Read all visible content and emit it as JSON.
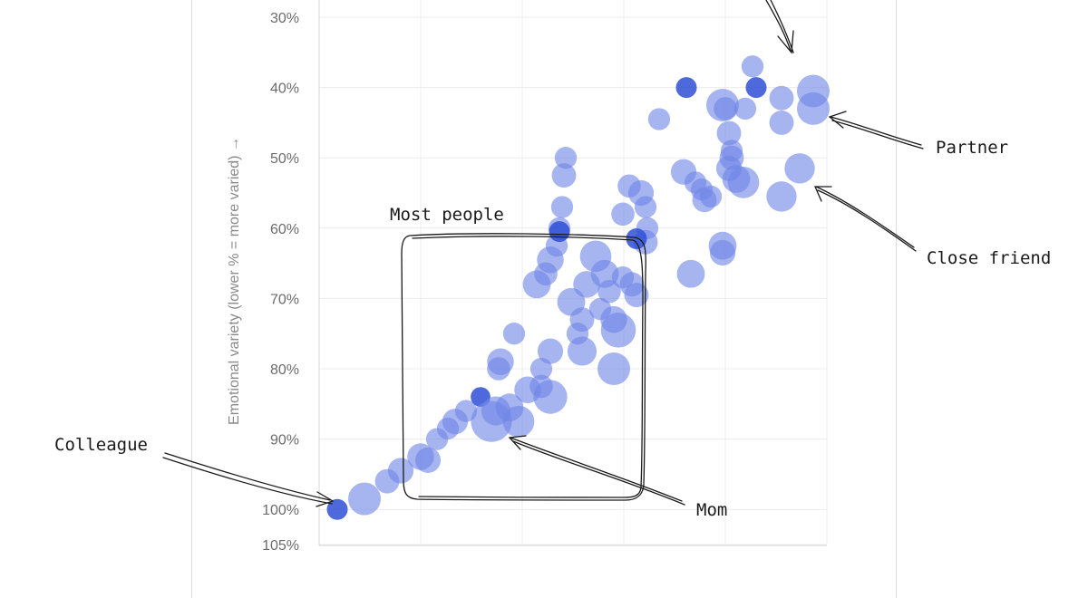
{
  "chart_data": {
    "type": "scatter",
    "ylabel": "Emotional variety (lower % = more varied) →",
    "y_ticks": [
      "30%",
      "40%",
      "50%",
      "60%",
      "70%",
      "80%",
      "90%",
      "100%",
      "105%"
    ],
    "y_tick_values": [
      30,
      40,
      50,
      60,
      70,
      80,
      90,
      100,
      105
    ],
    "ylim": [
      30,
      105
    ],
    "y_inverted": true,
    "x_ticks_visible": false,
    "grid": true,
    "colors": {
      "point_light": "#6f86e6",
      "point_dark": "#2f4fd6",
      "annotation": "#1a1a1a"
    },
    "points": [
      {
        "x": 0.2,
        "y": 100,
        "r": 1
      },
      {
        "x": 0.5,
        "y": 98.5,
        "r": 2
      },
      {
        "x": 0.75,
        "y": 96,
        "r": 1.3
      },
      {
        "x": 0.9,
        "y": 94.5,
        "r": 1.4
      },
      {
        "x": 1.12,
        "y": 92.5,
        "r": 1.5
      },
      {
        "x": 1.2,
        "y": 93,
        "r": 1.4
      },
      {
        "x": 1.3,
        "y": 90,
        "r": 1.1
      },
      {
        "x": 1.42,
        "y": 88.5,
        "r": 1.1
      },
      {
        "x": 1.5,
        "y": 87.5,
        "r": 1.4
      },
      {
        "x": 1.62,
        "y": 86,
        "r": 1.1
      },
      {
        "x": 1.78,
        "y": 84,
        "r": 0.9
      },
      {
        "x": 1.9,
        "y": 87.5,
        "r": 2.7
      },
      {
        "x": 1.95,
        "y": 86,
        "r": 1.7
      },
      {
        "x": 2.1,
        "y": 85.5,
        "r": 1.6
      },
      {
        "x": 2.2,
        "y": 87.5,
        "r": 1.9
      },
      {
        "x": 2.3,
        "y": 83,
        "r": 1.5
      },
      {
        "x": 2.45,
        "y": 82.5,
        "r": 1.2
      },
      {
        "x": 2.55,
        "y": 84,
        "r": 2.1
      },
      {
        "x": 2.45,
        "y": 80,
        "r": 1.1
      },
      {
        "x": 2.55,
        "y": 77.5,
        "r": 1.4
      },
      {
        "x": 1.98,
        "y": 80,
        "r": 1.2
      },
      {
        "x": 2.0,
        "y": 79,
        "r": 1.5
      },
      {
        "x": 2.15,
        "y": 75,
        "r": 1.1
      },
      {
        "x": 2.4,
        "y": 68,
        "r": 1.6
      },
      {
        "x": 2.5,
        "y": 66.5,
        "r": 1.2
      },
      {
        "x": 2.55,
        "y": 64.5,
        "r": 1.5
      },
      {
        "x": 2.62,
        "y": 62.5,
        "r": 1.1
      },
      {
        "x": 2.65,
        "y": 60,
        "r": 1.1
      },
      {
        "x": 2.65,
        "y": 60.5,
        "r": 1.0
      },
      {
        "x": 2.68,
        "y": 57,
        "r": 1.1
      },
      {
        "x": 2.7,
        "y": 52.5,
        "r": 1.3
      },
      {
        "x": 2.72,
        "y": 50,
        "r": 1.1
      },
      {
        "x": 2.78,
        "y": 70.5,
        "r": 1.6
      },
      {
        "x": 2.85,
        "y": 75,
        "r": 1.1
      },
      {
        "x": 2.9,
        "y": 73,
        "r": 1.3
      },
      {
        "x": 2.95,
        "y": 68,
        "r": 1.5
      },
      {
        "x": 2.9,
        "y": 77.5,
        "r": 1.7
      },
      {
        "x": 3.05,
        "y": 64,
        "r": 1.9
      },
      {
        "x": 3.1,
        "y": 71.5,
        "r": 1.1
      },
      {
        "x": 3.15,
        "y": 66.5,
        "r": 1.6
      },
      {
        "x": 3.2,
        "y": 69,
        "r": 1.2
      },
      {
        "x": 3.25,
        "y": 73,
        "r": 1.5
      },
      {
        "x": 3.3,
        "y": 74.5,
        "r": 2.2
      },
      {
        "x": 3.35,
        "y": 67,
        "r": 1.1
      },
      {
        "x": 3.45,
        "y": 68,
        "r": 1.3
      },
      {
        "x": 3.5,
        "y": 69.5,
        "r": 1.3
      },
      {
        "x": 3.25,
        "y": 80,
        "r": 2.0
      },
      {
        "x": 3.35,
        "y": 58,
        "r": 1.2
      },
      {
        "x": 3.42,
        "y": 54,
        "r": 1.2
      },
      {
        "x": 3.55,
        "y": 55,
        "r": 1.4
      },
      {
        "x": 3.6,
        "y": 57,
        "r": 1.1
      },
      {
        "x": 3.62,
        "y": 60,
        "r": 1.1
      },
      {
        "x": 3.6,
        "y": 62,
        "r": 1.3
      },
      {
        "x": 3.5,
        "y": 61.5,
        "r": 1.0
      },
      {
        "x": 3.75,
        "y": 44.5,
        "r": 1.1
      },
      {
        "x": 4.05,
        "y": 40,
        "r": 1.0
      },
      {
        "x": 4.02,
        "y": 52,
        "r": 1.4
      },
      {
        "x": 4.1,
        "y": 66.5,
        "r": 1.6
      },
      {
        "x": 4.15,
        "y": 53.5,
        "r": 1.1
      },
      {
        "x": 4.22,
        "y": 54.5,
        "r": 1.1
      },
      {
        "x": 4.25,
        "y": 56,
        "r": 1.3
      },
      {
        "x": 4.32,
        "y": 55.5,
        "r": 1.1
      },
      {
        "x": 4.45,
        "y": 62.5,
        "r": 1.6
      },
      {
        "x": 4.45,
        "y": 63.5,
        "r": 1.4
      },
      {
        "x": 4.45,
        "y": 42.5,
        "r": 2.0
      },
      {
        "x": 4.48,
        "y": 43,
        "r": 1.2
      },
      {
        "x": 4.52,
        "y": 46.5,
        "r": 1.3
      },
      {
        "x": 4.55,
        "y": 49,
        "r": 1.1
      },
      {
        "x": 4.55,
        "y": 50,
        "r": 1.3
      },
      {
        "x": 4.52,
        "y": 51.5,
        "r": 1.4
      },
      {
        "x": 4.6,
        "y": 53,
        "r": 1.6
      },
      {
        "x": 4.68,
        "y": 53.5,
        "r": 1.9
      },
      {
        "x": 4.7,
        "y": 43,
        "r": 1.1
      },
      {
        "x": 4.78,
        "y": 37,
        "r": 1.1
      },
      {
        "x": 4.82,
        "y": 40,
        "r": 1.0
      },
      {
        "x": 5.1,
        "y": 41.5,
        "r": 1.3
      },
      {
        "x": 5.1,
        "y": 45,
        "r": 1.3
      },
      {
        "x": 5.1,
        "y": 55.5,
        "r": 1.8
      },
      {
        "x": 5.3,
        "y": 51.5,
        "r": 1.8
      },
      {
        "x": 5.45,
        "y": 40.5,
        "r": 2.0
      },
      {
        "x": 5.45,
        "y": 43,
        "r": 2.0
      }
    ],
    "annotations": [
      {
        "label": "Colleague",
        "x": 0.2,
        "y": 100
      },
      {
        "label": "Mom",
        "x": 1.9,
        "y": 87.5
      },
      {
        "label": "Partner",
        "x": 5.45,
        "y": 43
      },
      {
        "label": "Close friend",
        "x": 5.3,
        "y": 51.5
      },
      {
        "label": "Most people",
        "x_range": [
          0.95,
          3.8
        ],
        "y_range": [
          61,
          98
        ]
      }
    ]
  }
}
